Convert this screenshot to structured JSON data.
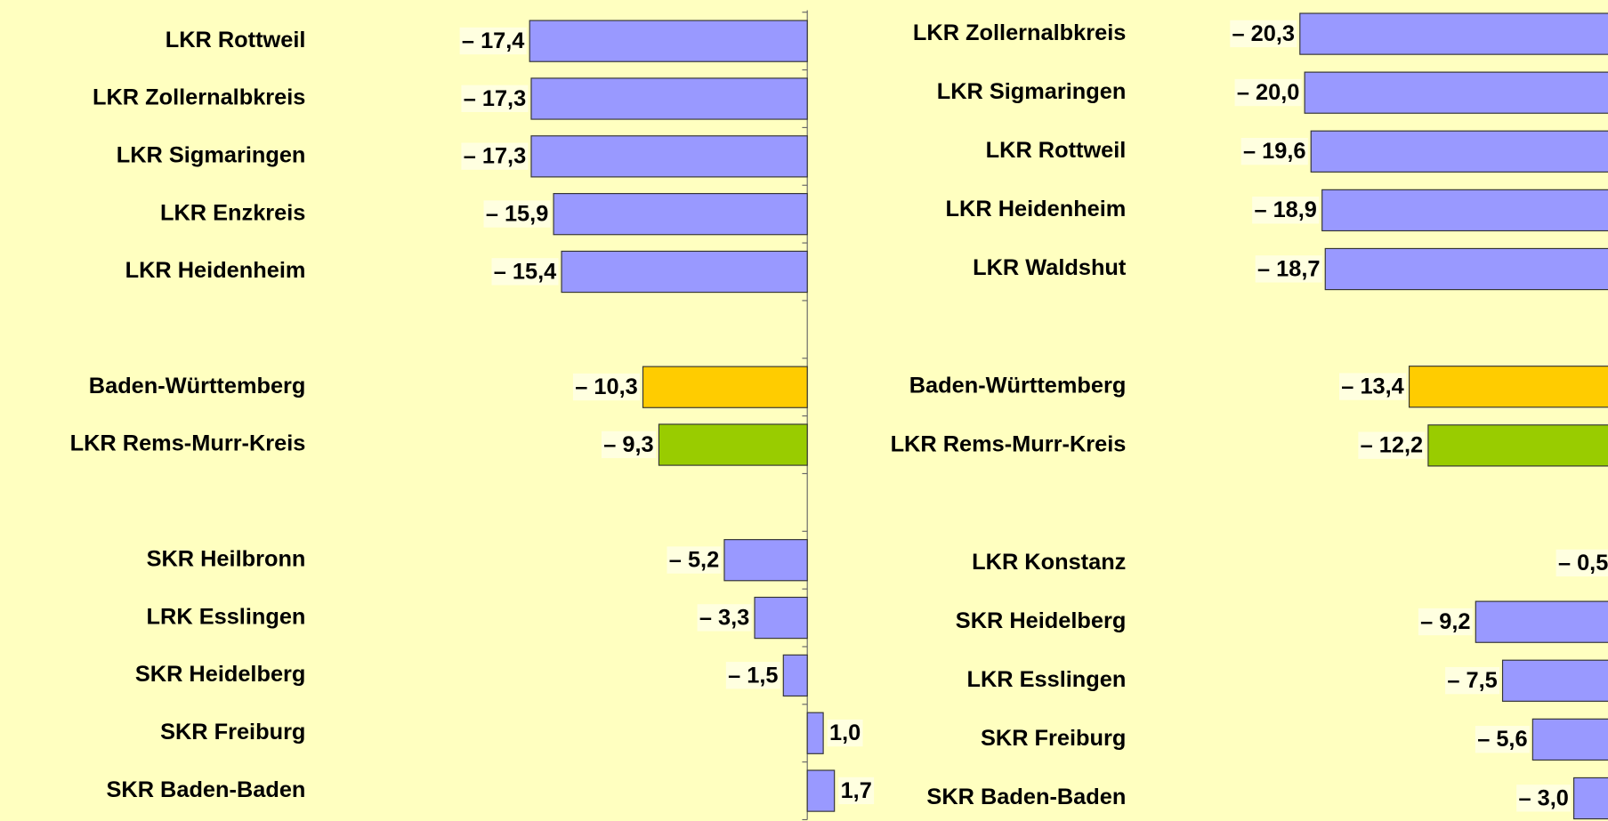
{
  "chart_data": [
    {
      "type": "barh",
      "categories": [
        "LKR Rottweil",
        "LKR Zollernalbkreis",
        "LKR Sigmaringen",
        "LKR Enzkreis",
        "LKR Heidenheim",
        null,
        "Baden-Württemberg",
        "LKR Rems-Murr-Kreis",
        null,
        "SKR Heilbronn",
        "LRK Esslingen",
        "SKR Heidelberg",
        "SKR Freiburg",
        "SKR Baden-Baden"
      ],
      "values": [
        -17.4,
        -17.3,
        -17.3,
        -15.9,
        -15.4,
        null,
        -10.3,
        -9.3,
        null,
        -5.2,
        -3.3,
        -1.5,
        1.0,
        1.7
      ],
      "value_labels": [
        "– 17,4",
        "– 17,3",
        "– 17,3",
        "– 15,9",
        "– 15,4",
        null,
        "– 10,3",
        "– 9,3",
        null,
        "– 5,2",
        "– 3,3",
        "– 1,5",
        "1,0",
        "1,7"
      ],
      "colors": [
        "#9999ff",
        "#9999ff",
        "#9999ff",
        "#9999ff",
        "#9999ff",
        null,
        "#ffcc00",
        "#99cc00",
        null,
        "#9999ff",
        "#9999ff",
        "#9999ff",
        "#9999ff",
        "#9999ff"
      ],
      "xlim": [
        -20,
        5
      ]
    },
    {
      "type": "barh",
      "categories": [
        "LKR Zollernalbkreis",
        "LKR Sigmaringen",
        "LKR Rottweil",
        "LKR Heidenheim",
        "LKR Waldshut",
        null,
        "Baden-Württemberg",
        "LKR Rems-Murr-Kreis",
        null,
        "LKR Konstanz",
        "SKR Heidelberg",
        "LKR Esslingen",
        "SKR Freiburg",
        "SKR Baden-Baden"
      ],
      "values": [
        -20.3,
        -20.0,
        -19.6,
        -18.9,
        -18.7,
        null,
        -13.4,
        -12.2,
        null,
        -0.5,
        -9.2,
        -7.5,
        -5.6,
        -3.0
      ],
      "value_labels": [
        "– 20,3",
        "– 20,0",
        "– 19,6",
        "– 18,9",
        "– 18,7",
        null,
        "– 13,4",
        "– 12,2",
        null,
        "– 0,5",
        "– 9,2",
        "– 7,5",
        "– 5,6",
        "– 3,0"
      ],
      "colors": [
        "#9999ff",
        "#9999ff",
        "#9999ff",
        "#9999ff",
        "#9999ff",
        null,
        "#ffcc00",
        "#99cc00",
        null,
        "#9999ff",
        "#9999ff",
        "#9999ff",
        "#9999ff",
        "#9999ff"
      ],
      "xlim": [
        -25,
        0
      ]
    }
  ]
}
